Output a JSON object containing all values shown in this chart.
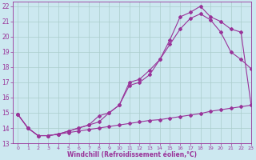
{
  "line1_x": [
    0,
    1,
    2,
    3,
    4,
    5,
    6,
    7,
    8,
    9,
    10,
    11,
    12,
    13,
    14,
    15,
    16,
    17,
    18,
    19,
    20,
    21,
    22,
    23
  ],
  "line1_y": [
    14.9,
    14.0,
    13.5,
    13.5,
    13.6,
    13.7,
    13.8,
    13.9,
    14.0,
    14.1,
    14.2,
    14.3,
    14.4,
    14.5,
    14.55,
    14.65,
    14.75,
    14.85,
    14.95,
    15.1,
    15.2,
    15.3,
    15.4,
    15.5
  ],
  "line2_x": [
    0,
    1,
    2,
    3,
    4,
    5,
    6,
    7,
    8,
    9,
    10,
    11,
    12,
    13,
    14,
    15,
    16,
    17,
    18,
    19,
    20,
    21,
    22,
    23
  ],
  "line2_y": [
    14.9,
    14.0,
    13.5,
    13.5,
    13.6,
    13.8,
    14.0,
    14.2,
    14.4,
    15.0,
    15.5,
    16.8,
    17.0,
    17.5,
    18.5,
    19.5,
    20.5,
    21.2,
    21.5,
    21.1,
    20.3,
    19.0,
    18.5,
    17.9
  ],
  "line3_x": [
    0,
    1,
    2,
    3,
    4,
    5,
    6,
    7,
    8,
    9,
    10,
    11,
    12,
    13,
    14,
    15,
    16,
    17,
    18,
    19,
    20,
    21,
    22,
    23
  ],
  "line3_y": [
    14.9,
    14.0,
    13.5,
    13.5,
    13.6,
    13.8,
    14.0,
    14.2,
    14.8,
    15.0,
    15.5,
    17.0,
    17.2,
    17.8,
    18.5,
    19.8,
    21.3,
    21.6,
    22.0,
    21.3,
    21.0,
    20.5,
    20.3,
    15.5
  ],
  "color": "#993399",
  "bg_color": "#cce8f0",
  "grid_color": "#aacccc",
  "xlabel": "Windchill (Refroidissement éolien,°C)",
  "xlim": [
    -0.5,
    23
  ],
  "ylim": [
    13,
    22.3
  ],
  "yticks": [
    13,
    14,
    15,
    16,
    17,
    18,
    19,
    20,
    21,
    22
  ],
  "xticks": [
    0,
    1,
    2,
    3,
    4,
    5,
    6,
    7,
    8,
    9,
    10,
    11,
    12,
    13,
    14,
    15,
    16,
    17,
    18,
    19,
    20,
    21,
    22,
    23
  ],
  "marker": "D",
  "markersize": 2.0,
  "linewidth": 0.8,
  "xlabel_fontsize": 5.5,
  "ytick_fontsize": 5.5,
  "xtick_fontsize": 4.5
}
